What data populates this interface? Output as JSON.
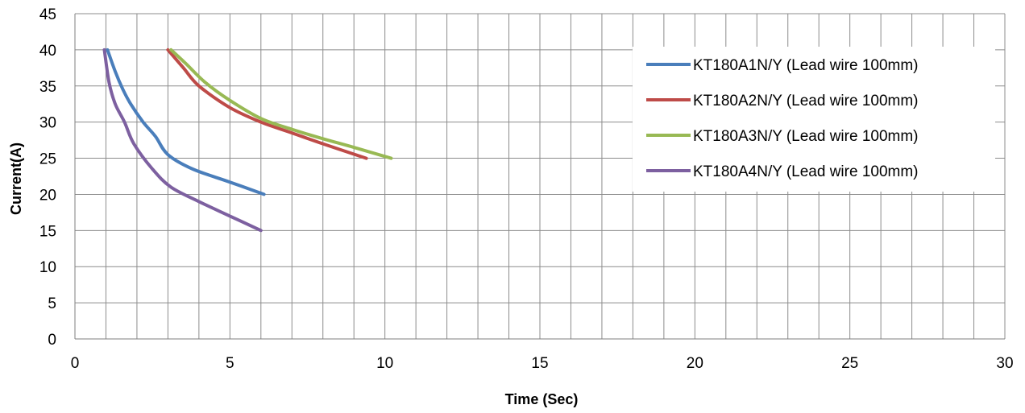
{
  "chart_data": {
    "type": "line",
    "title": "",
    "xlabel": "Time (Sec)",
    "ylabel": "Current(A)",
    "xlim": [
      0,
      30
    ],
    "ylim": [
      0,
      45
    ],
    "x_ticks": [
      0,
      5,
      10,
      15,
      20,
      25,
      30
    ],
    "y_ticks": [
      0,
      5,
      10,
      15,
      20,
      25,
      30,
      35,
      40,
      45
    ],
    "grid": "on",
    "legend_position": "top-right",
    "series": [
      {
        "name": "KT180A1N/Y (Lead wire 100mm)",
        "color": "#4a7ebb",
        "points": [
          [
            1.05,
            40
          ],
          [
            1.3,
            37
          ],
          [
            1.55,
            34.5
          ],
          [
            1.8,
            32.5
          ],
          [
            2.2,
            30
          ],
          [
            2.6,
            28
          ],
          [
            3.0,
            25.5
          ],
          [
            3.8,
            23.5
          ],
          [
            5.0,
            21.7
          ],
          [
            6.1,
            20
          ]
        ]
      },
      {
        "name": "KT180A2N/Y (Lead wire 100mm)",
        "color": "#be4b48",
        "points": [
          [
            3.0,
            40
          ],
          [
            3.5,
            37.5
          ],
          [
            4.0,
            35
          ],
          [
            5.0,
            32
          ],
          [
            6.0,
            30
          ],
          [
            7.0,
            28.5
          ],
          [
            8.0,
            27
          ],
          [
            9.4,
            25
          ]
        ]
      },
      {
        "name": "KT180A3N/Y (Lead wire 100mm)",
        "color": "#98b954",
        "points": [
          [
            3.1,
            40
          ],
          [
            3.6,
            38
          ],
          [
            4.2,
            35.5
          ],
          [
            5.0,
            33
          ],
          [
            6.0,
            30.5
          ],
          [
            7.0,
            29
          ],
          [
            8.0,
            27.7
          ],
          [
            9.0,
            26.5
          ],
          [
            10.2,
            25
          ]
        ]
      },
      {
        "name": "KT180A4N/Y (Lead wire 100mm)",
        "color": "#7d60a0",
        "points": [
          [
            0.95,
            40
          ],
          [
            1.1,
            35.5
          ],
          [
            1.3,
            32.5
          ],
          [
            1.6,
            30
          ],
          [
            1.9,
            27
          ],
          [
            2.5,
            23.5
          ],
          [
            3.1,
            21
          ],
          [
            4.0,
            19
          ],
          [
            5.0,
            17
          ],
          [
            6.0,
            15
          ]
        ]
      }
    ]
  }
}
